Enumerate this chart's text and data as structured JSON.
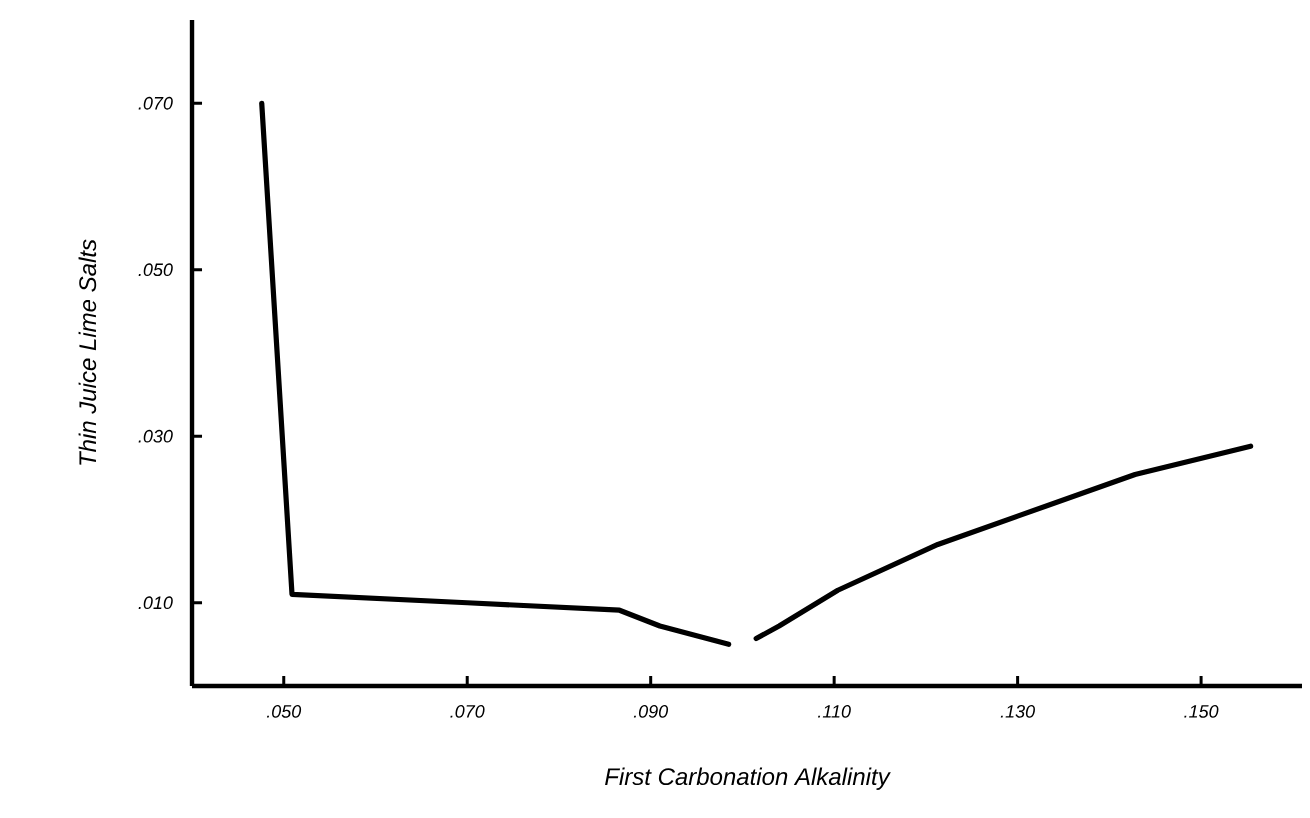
{
  "chart_data": {
    "type": "line",
    "xlabel": "First Carbonation Alkalinity",
    "ylabel": "Thin Juice Lime Salts",
    "x": [
      0.0476,
      0.0509,
      0.07,
      0.0866,
      0.091,
      0.0985,
      null,
      0.1015,
      0.104,
      0.1104,
      0.1213,
      0.13,
      0.1428,
      0.1554
    ],
    "values": [
      0.07,
      0.011,
      0.01,
      0.0091,
      0.0072,
      0.005,
      null,
      0.0057,
      0.0072,
      0.0115,
      0.017,
      0.0204,
      0.0254,
      0.0288
    ],
    "color": "#000000",
    "xlim": [
      0.04,
      0.161
    ],
    "ylim": [
      0,
      0.08
    ],
    "xticks": [
      {
        "value": 0.05,
        "label": ".050"
      },
      {
        "value": 0.07,
        "label": ".070"
      },
      {
        "value": 0.09,
        "label": ".090"
      },
      {
        "value": 0.11,
        "label": ".110"
      },
      {
        "value": 0.13,
        "label": ".130"
      },
      {
        "value": 0.15,
        "label": ".150"
      }
    ],
    "yticks": [
      {
        "value": 0.01,
        "label": ".010"
      },
      {
        "value": 0.03,
        "label": ".030"
      },
      {
        "value": 0.05,
        "label": ".050"
      },
      {
        "value": 0.07,
        "label": ".070"
      }
    ],
    "marker": "none",
    "line_style": "solid"
  }
}
